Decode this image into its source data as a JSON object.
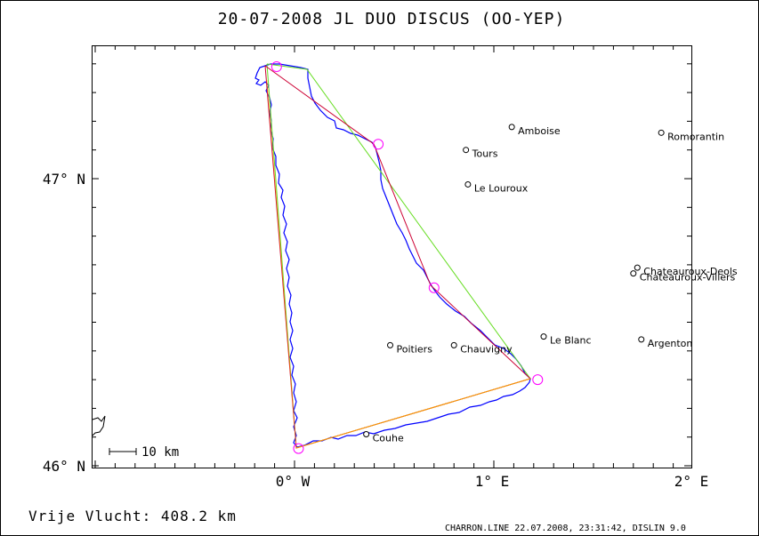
{
  "title": "20-07-2008   JL   DUO DISCUS (OO-YEP)",
  "axes": {
    "y_ticks": [
      {
        "label": "47° N",
        "lat": 47.0
      },
      {
        "label": "46° N",
        "lat": 46.0
      }
    ],
    "x_ticks": [
      {
        "label": "0° W",
        "lon": 0.0
      },
      {
        "label": "1° E",
        "lon": 1.0
      },
      {
        "label": "2° E",
        "lon": 2.0
      }
    ]
  },
  "towns": [
    {
      "name": "Amboise",
      "lon": 1.09,
      "lat": 47.18
    },
    {
      "name": "Romorantin",
      "lon": 1.84,
      "lat": 47.16
    },
    {
      "name": "Tours",
      "lon": 0.86,
      "lat": 47.1
    },
    {
      "name": "Le Louroux",
      "lon": 0.87,
      "lat": 46.98
    },
    {
      "name": "Chateauroux-Deols",
      "lon": 1.72,
      "lat": 46.69
    },
    {
      "name": "Chateauroux-Villers",
      "lon": 1.7,
      "lat": 46.67
    },
    {
      "name": "Le Blanc",
      "lon": 1.25,
      "lat": 46.45
    },
    {
      "name": "Argenton",
      "lon": 1.74,
      "lat": 46.44
    },
    {
      "name": "Poitiers",
      "lon": 0.48,
      "lat": 46.42
    },
    {
      "name": "Chauvigny",
      "lon": 0.8,
      "lat": 46.42
    },
    {
      "name": "Couhe",
      "lon": 0.36,
      "lat": 46.11
    }
  ],
  "turnpoints": [
    {
      "lon": -0.09,
      "lat": 47.39
    },
    {
      "lon": 0.42,
      "lat": 47.12
    },
    {
      "lon": 0.7,
      "lat": 46.62
    },
    {
      "lon": 1.22,
      "lat": 46.3
    },
    {
      "lon": 0.02,
      "lat": 46.06
    }
  ],
  "scale_bar": {
    "label": "10 km"
  },
  "footer": {
    "distance": "Vrije Vlucht:  408.2 km",
    "program": "CHARRON.LINE 22.07.2008, 23:31:42, DISLIN 9.0"
  },
  "colors": {
    "track": "#0000ff",
    "triangle_green": "#66dd22",
    "triangle_red": "#cc0033",
    "leg_orange": "#ff9900",
    "turnpoint": "#ff00ff"
  }
}
